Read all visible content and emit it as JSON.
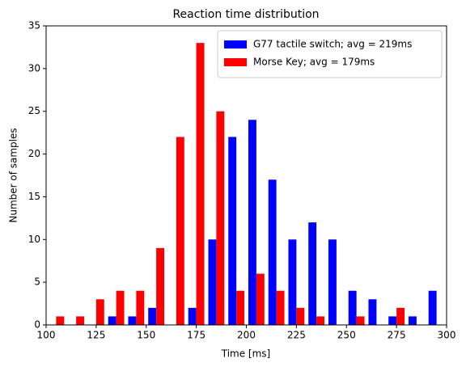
{
  "chart_data": {
    "type": "histogram",
    "title": "Reaction time distribution",
    "x_label": "Time [ms]",
    "y_label": "Number of samples",
    "bins": [
      100,
      110,
      120,
      130,
      140,
      150,
      160,
      170,
      180,
      190,
      200,
      210,
      220,
      230,
      240,
      250,
      260,
      270,
      280,
      290,
      300
    ],
    "series": [
      {
        "name": "G77 tactile switch; avg = 219ms",
        "color": "#0000ff",
        "values": [
          0,
          0,
          0,
          1,
          1,
          2,
          0,
          2,
          10,
          22,
          24,
          17,
          10,
          12,
          10,
          4,
          3,
          1,
          1,
          4
        ]
      },
      {
        "name": "Morse Key; avg = 179ms",
        "color": "#ff0000",
        "values": [
          1,
          1,
          3,
          4,
          4,
          9,
          22,
          33,
          25,
          4,
          6,
          4,
          2,
          1,
          0,
          1,
          0,
          2,
          0,
          0
        ]
      }
    ],
    "xlim": [
      100,
      300
    ],
    "xticks": [
      100,
      125,
      150,
      175,
      200,
      225,
      250,
      275,
      300
    ],
    "ylim": [
      0,
      35
    ],
    "yticks": [
      0,
      5,
      10,
      15,
      20,
      25,
      30,
      35
    ],
    "legend": "upper right"
  }
}
